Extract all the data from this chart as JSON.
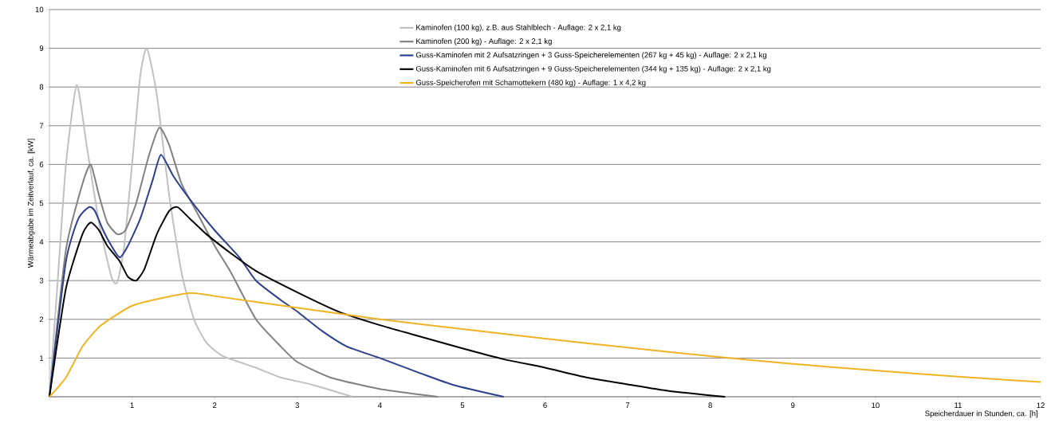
{
  "chart_data": {
    "type": "line",
    "xlabel": "Speicherdauer in Stunden, ca. [h]",
    "ylabel": "Wärmeabgabe im Zeitverlauf, ca. [kW]",
    "xlim": [
      0,
      12
    ],
    "ylim": [
      0,
      10
    ],
    "xticks": [
      {
        "value": 0,
        "label": null
      },
      1,
      2,
      3,
      4,
      5,
      6,
      7,
      8,
      9,
      10,
      11,
      12
    ],
    "yticks": [
      {
        "value": 0,
        "label": null
      },
      1,
      2,
      3,
      4,
      5,
      6,
      7,
      8,
      9,
      10
    ],
    "grid": "y",
    "legend": "top right",
    "series": [
      {
        "name": "Kaminofen (100 kg), z.B. aus Stahlblech - Auflage: 2 x 2,1 kg",
        "color": "#c0c0c0",
        "x": [
          0,
          0.1,
          0.2,
          0.33,
          0.45,
          0.6,
          0.75,
          0.82,
          0.9,
          1.0,
          1.1,
          1.18,
          1.3,
          1.45,
          1.6,
          1.75,
          1.9,
          2.1,
          2.5,
          2.8,
          3.2,
          3.67
        ],
        "values": [
          0,
          3,
          6,
          8.05,
          6.5,
          4.5,
          3.1,
          2.95,
          3.8,
          6,
          8.3,
          9.0,
          7.8,
          5.2,
          3.2,
          2.0,
          1.4,
          1.05,
          0.75,
          0.5,
          0.3,
          0
        ]
      },
      {
        "name": "Kaminofen (200 kg) - Auflage: 2 x 2,1 kg",
        "color": "#808080",
        "x": [
          0,
          0.2,
          0.4,
          0.5,
          0.6,
          0.7,
          0.82,
          0.92,
          1.05,
          1.2,
          1.33,
          1.45,
          1.6,
          1.8,
          2.0,
          2.2,
          2.5,
          2.8,
          3.0,
          3.4,
          4.0,
          4.7
        ],
        "values": [
          0,
          3.8,
          5.5,
          6.0,
          5.2,
          4.5,
          4.2,
          4.3,
          5,
          6.2,
          6.95,
          6.5,
          5.5,
          4.7,
          3.9,
          3.2,
          2.0,
          1.3,
          0.9,
          0.5,
          0.2,
          0
        ]
      },
      {
        "name": "Guss-Kaminofen mit 2 Aufsatzringen + 3 Guss-Speicherelementen (267 kg + 45 kg) - Auflage: 2 x 2,1 kg",
        "color": "#2b3f8c",
        "x": [
          0,
          0.2,
          0.35,
          0.48,
          0.55,
          0.65,
          0.75,
          0.85,
          0.95,
          1.1,
          1.25,
          1.35,
          1.5,
          1.7,
          2.0,
          2.3,
          2.5,
          2.8,
          3.0,
          3.3,
          3.6,
          4.0,
          4.5,
          4.9,
          5.5
        ],
        "values": [
          0,
          3.5,
          4.6,
          4.9,
          4.8,
          4.3,
          3.9,
          3.6,
          3.9,
          4.6,
          5.6,
          6.25,
          5.7,
          5.1,
          4.3,
          3.6,
          3.0,
          2.5,
          2.2,
          1.7,
          1.3,
          1.0,
          0.6,
          0.3,
          0
        ]
      },
      {
        "name": "Guss-Kaminofen mit 6 Aufsatzringen + 9 Guss-Speicherelementen (344 kg + 135 kg) - Auflage: 2 x 2,1 kg",
        "color": "#000000",
        "x": [
          0,
          0.2,
          0.4,
          0.5,
          0.6,
          0.7,
          0.85,
          0.95,
          1.05,
          1.15,
          1.3,
          1.45,
          1.55,
          1.7,
          1.9,
          2.2,
          2.5,
          3.0,
          3.5,
          4.0,
          4.5,
          5.0,
          5.5,
          6.0,
          6.5,
          7.0,
          7.5,
          8.18
        ],
        "values": [
          0,
          2.8,
          4.2,
          4.5,
          4.3,
          3.9,
          3.5,
          3.1,
          3.0,
          3.3,
          4.2,
          4.8,
          4.9,
          4.6,
          4.2,
          3.7,
          3.25,
          2.7,
          2.2,
          1.85,
          1.55,
          1.25,
          0.97,
          0.75,
          0.5,
          0.32,
          0.15,
          0
        ]
      },
      {
        "name": "Guss-Speicherofen mit Schamottekern (480 kg) - Auflage: 1 x 4,2 kg",
        "color": "#f0b323",
        "x": [
          0,
          0.2,
          0.4,
          0.6,
          0.8,
          1.0,
          1.3,
          1.7,
          2.0,
          3.0,
          4.0,
          5.0,
          6.0,
          7.0,
          8.0,
          9.0,
          10.0,
          11.0,
          12.0
        ],
        "values": [
          0,
          0.5,
          1.3,
          1.8,
          2.1,
          2.35,
          2.52,
          2.68,
          2.6,
          2.3,
          2.0,
          1.75,
          1.5,
          1.27,
          1.05,
          0.85,
          0.68,
          0.52,
          0.38
        ]
      }
    ]
  }
}
